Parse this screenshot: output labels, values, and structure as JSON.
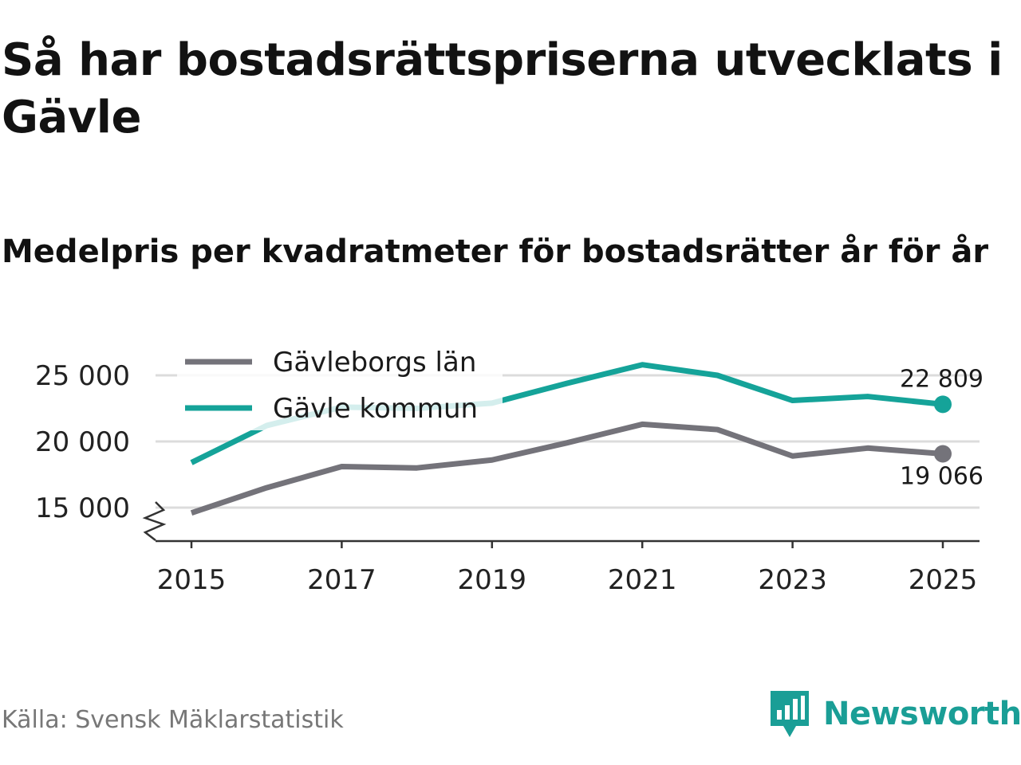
{
  "title": "Så har bostadsrättspriserna utvecklats i Gävle",
  "subtitle": "Medelpris per kvadratmeter för bostadsrätter år för år",
  "source": "Källa: Svensk Mäklarstatistik",
  "brand": {
    "name": "Newsworthy",
    "logo_icon": "bar-chart-speech-bubble-icon"
  },
  "colors": {
    "gavle_kommun": "#15a399",
    "gavleborgs_lan": "#74737a",
    "grid": "#dcdcdc",
    "axis": "#333333",
    "text": "#222222"
  },
  "chart_data": {
    "type": "line",
    "title": "Så har bostadsrättspriserna utvecklats i Gävle",
    "subtitle": "Medelpris per kvadratmeter för bostadsrätter år för år",
    "xlabel": "",
    "ylabel": "",
    "x": [
      2015,
      2016,
      2017,
      2018,
      2019,
      2020,
      2021,
      2022,
      2023,
      2024,
      2025
    ],
    "x_ticks": [
      2015,
      2017,
      2019,
      2021,
      2023,
      2025
    ],
    "x_tick_labels": [
      "2015",
      "2017",
      "2019",
      "2021",
      "2023",
      "2025"
    ],
    "xlim": [
      2014.5,
      2025.5
    ],
    "ylim": [
      12500,
      27000
    ],
    "y_ticks": [
      15000,
      20000,
      25000
    ],
    "y_tick_labels": [
      "15 000",
      "20 000",
      "25 000"
    ],
    "axis_break": true,
    "grid": true,
    "legend_position": "top-left",
    "series": [
      {
        "name": "Gävleborgs län",
        "color": "#74737a",
        "values": [
          14600,
          16500,
          18100,
          18000,
          18600,
          19900,
          21300,
          20900,
          18900,
          19500,
          19066
        ],
        "end_label": "19 066"
      },
      {
        "name": "Gävle kommun",
        "color": "#15a399",
        "values": [
          18400,
          21200,
          22600,
          22500,
          22900,
          24400,
          25800,
          25000,
          23100,
          23400,
          22809
        ],
        "end_label": "22 809"
      }
    ]
  }
}
